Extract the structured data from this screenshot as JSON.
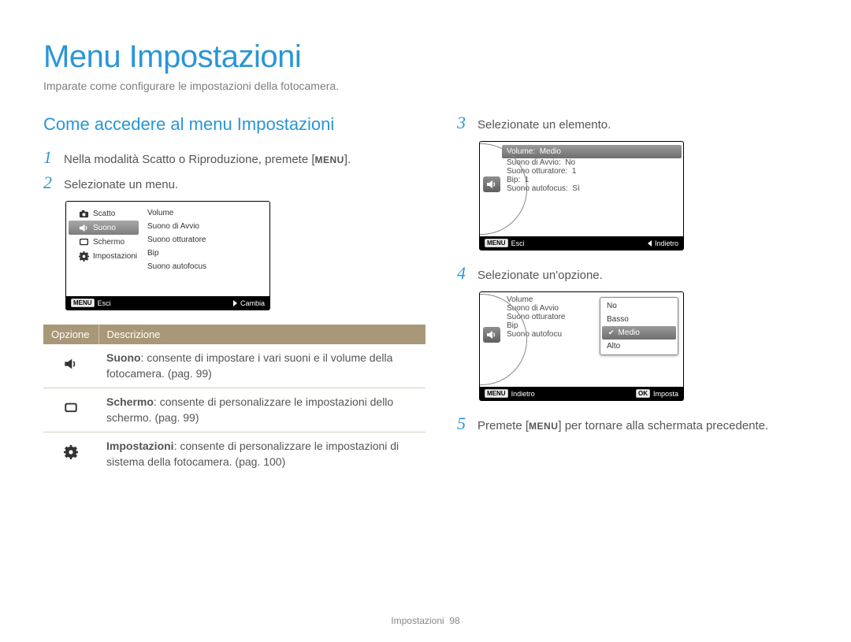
{
  "page": {
    "title": "Menu Impostazioni",
    "subtitle": "Imparate come configurare le impostazioni della fotocamera.",
    "section_title": "Come accedere al menu Impostazioni",
    "footer_label": "Impostazioni",
    "footer_page": "98"
  },
  "steps": {
    "s1": {
      "num": "1",
      "text_before": "Nella modalità Scatto o Riproduzione, premete [",
      "text_after": "].",
      "menu_label": "MENU"
    },
    "s2": {
      "num": "2",
      "text": "Selezionate un menu."
    },
    "s3": {
      "num": "3",
      "text": "Selezionate un elemento."
    },
    "s4": {
      "num": "4",
      "text": "Selezionate un'opzione."
    },
    "s5": {
      "num": "5",
      "text_before": "Premete [",
      "text_after": "] per tornare alla schermata precedente.",
      "menu_label": "MENU"
    }
  },
  "screen1": {
    "left": [
      {
        "icon": "camera",
        "label": "Scatto"
      },
      {
        "icon": "sound",
        "label": "Suono",
        "selected": true
      },
      {
        "icon": "screen",
        "label": "Schermo"
      },
      {
        "icon": "gear",
        "label": "Impostazioni"
      }
    ],
    "right": [
      "Volume",
      "Suono di Avvio",
      "Suono otturatore",
      "Bip",
      "Suono autofocus"
    ],
    "footer_left_badge": "MENU",
    "footer_left": "Esci",
    "footer_right": "Cambia"
  },
  "table": {
    "head_option": "Opzione",
    "head_desc": "Descrizione",
    "rows": [
      {
        "icon": "sound",
        "bold": "Suono",
        "text": ": consente di impostare i vari suoni e il volume della fotocamera. (pag. 99)"
      },
      {
        "icon": "screen",
        "bold": "Schermo",
        "text": ": consente di personalizzare le impostazioni dello schermo. (pag. 99)"
      },
      {
        "icon": "gear",
        "bold": "Impostazioni",
        "text": ": consente di personalizzare le impostazioni di sistema della fotocamera. (pag. 100)"
      }
    ]
  },
  "screen2": {
    "rows": [
      {
        "label": "Volume",
        "value": "Medio",
        "highlight": true
      },
      {
        "label": "Suono di Avvio",
        "value": "No"
      },
      {
        "label": "Suono otturatore",
        "value": "1"
      },
      {
        "label": "Bip",
        "value": "1"
      },
      {
        "label": "Suono autofocus",
        "value": "Sì"
      }
    ],
    "footer_left_badge": "MENU",
    "footer_left": "Esci",
    "footer_right": "Indietro"
  },
  "screen3": {
    "rows": [
      {
        "label": "Volume"
      },
      {
        "label": "Suono di Avvio"
      },
      {
        "label": "Suono otturatore"
      },
      {
        "label": "Bip"
      },
      {
        "label": "Suono autofocu"
      }
    ],
    "popup": [
      {
        "label": "No"
      },
      {
        "label": "Basso"
      },
      {
        "label": "Medio",
        "selected": true
      },
      {
        "label": "Alto"
      }
    ],
    "footer_left_badge": "MENU",
    "footer_left": "Indietro",
    "footer_right_badge": "OK",
    "footer_right": "Imposta"
  }
}
